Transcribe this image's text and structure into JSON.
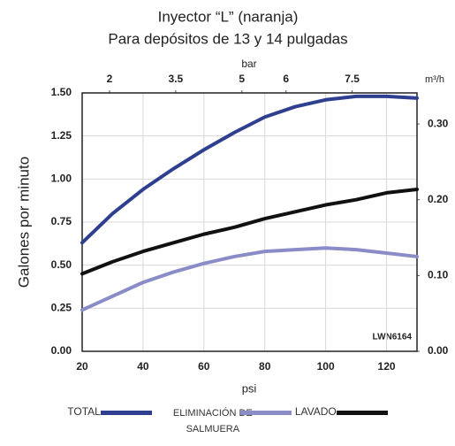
{
  "chart_data": {
    "type": "line",
    "title": "Inyector “L” (naranja)",
    "subtitle": "Para depósitos de 13 y 14 pulgadas",
    "xlabel": "psi",
    "ylabel": "Galones por minuto",
    "x2label": "bar",
    "y2label": "m³/h",
    "annotation": "LWN6164",
    "x": [
      20,
      30,
      40,
      50,
      60,
      70,
      80,
      90,
      100,
      110,
      120,
      130
    ],
    "series": [
      {
        "name": "TOTAL",
        "color": "#2e3f8f",
        "values": [
          0.63,
          0.8,
          0.94,
          1.06,
          1.17,
          1.27,
          1.36,
          1.42,
          1.46,
          1.48,
          1.48,
          1.47
        ]
      },
      {
        "name": "ELIMINACIÓN DE SALMUERA",
        "color": "#8a8cc8",
        "values": [
          0.24,
          0.32,
          0.4,
          0.46,
          0.51,
          0.55,
          0.58,
          0.59,
          0.6,
          0.59,
          0.57,
          0.55
        ]
      },
      {
        "name": "LAVADO",
        "color": "#111111",
        "values": [
          0.45,
          0.52,
          0.58,
          0.63,
          0.68,
          0.72,
          0.77,
          0.81,
          0.85,
          0.88,
          0.92,
          0.94
        ]
      }
    ],
    "xlim": [
      20,
      130
    ],
    "xticks": [
      20,
      40,
      60,
      80,
      100,
      120
    ],
    "ylim": [
      0,
      1.5
    ],
    "yticks": [
      {
        "value": 0,
        "label": "0.00"
      },
      {
        "value": 0.25,
        "label": "0.25"
      },
      {
        "value": 0.5,
        "label": "0.50"
      },
      {
        "value": 0.75,
        "label": "0.75"
      },
      {
        "value": 1,
        "label": "1.00"
      },
      {
        "value": 1.25,
        "label": "1.25"
      },
      {
        "value": 1.5,
        "label": "1.50"
      }
    ],
    "x2lim": [
      1.38,
      8.97
    ],
    "x2ticks": [
      2,
      3.5,
      5,
      6,
      7.5
    ],
    "y2lim": [
      0,
      0.341
    ],
    "y2ticks": [
      {
        "value": 0,
        "label": "0.00"
      },
      {
        "value": 0.1,
        "label": "0.10"
      },
      {
        "value": 0.2,
        "label": "0.20"
      },
      {
        "value": 0.3,
        "label": "0.30"
      }
    ],
    "grid": true
  }
}
